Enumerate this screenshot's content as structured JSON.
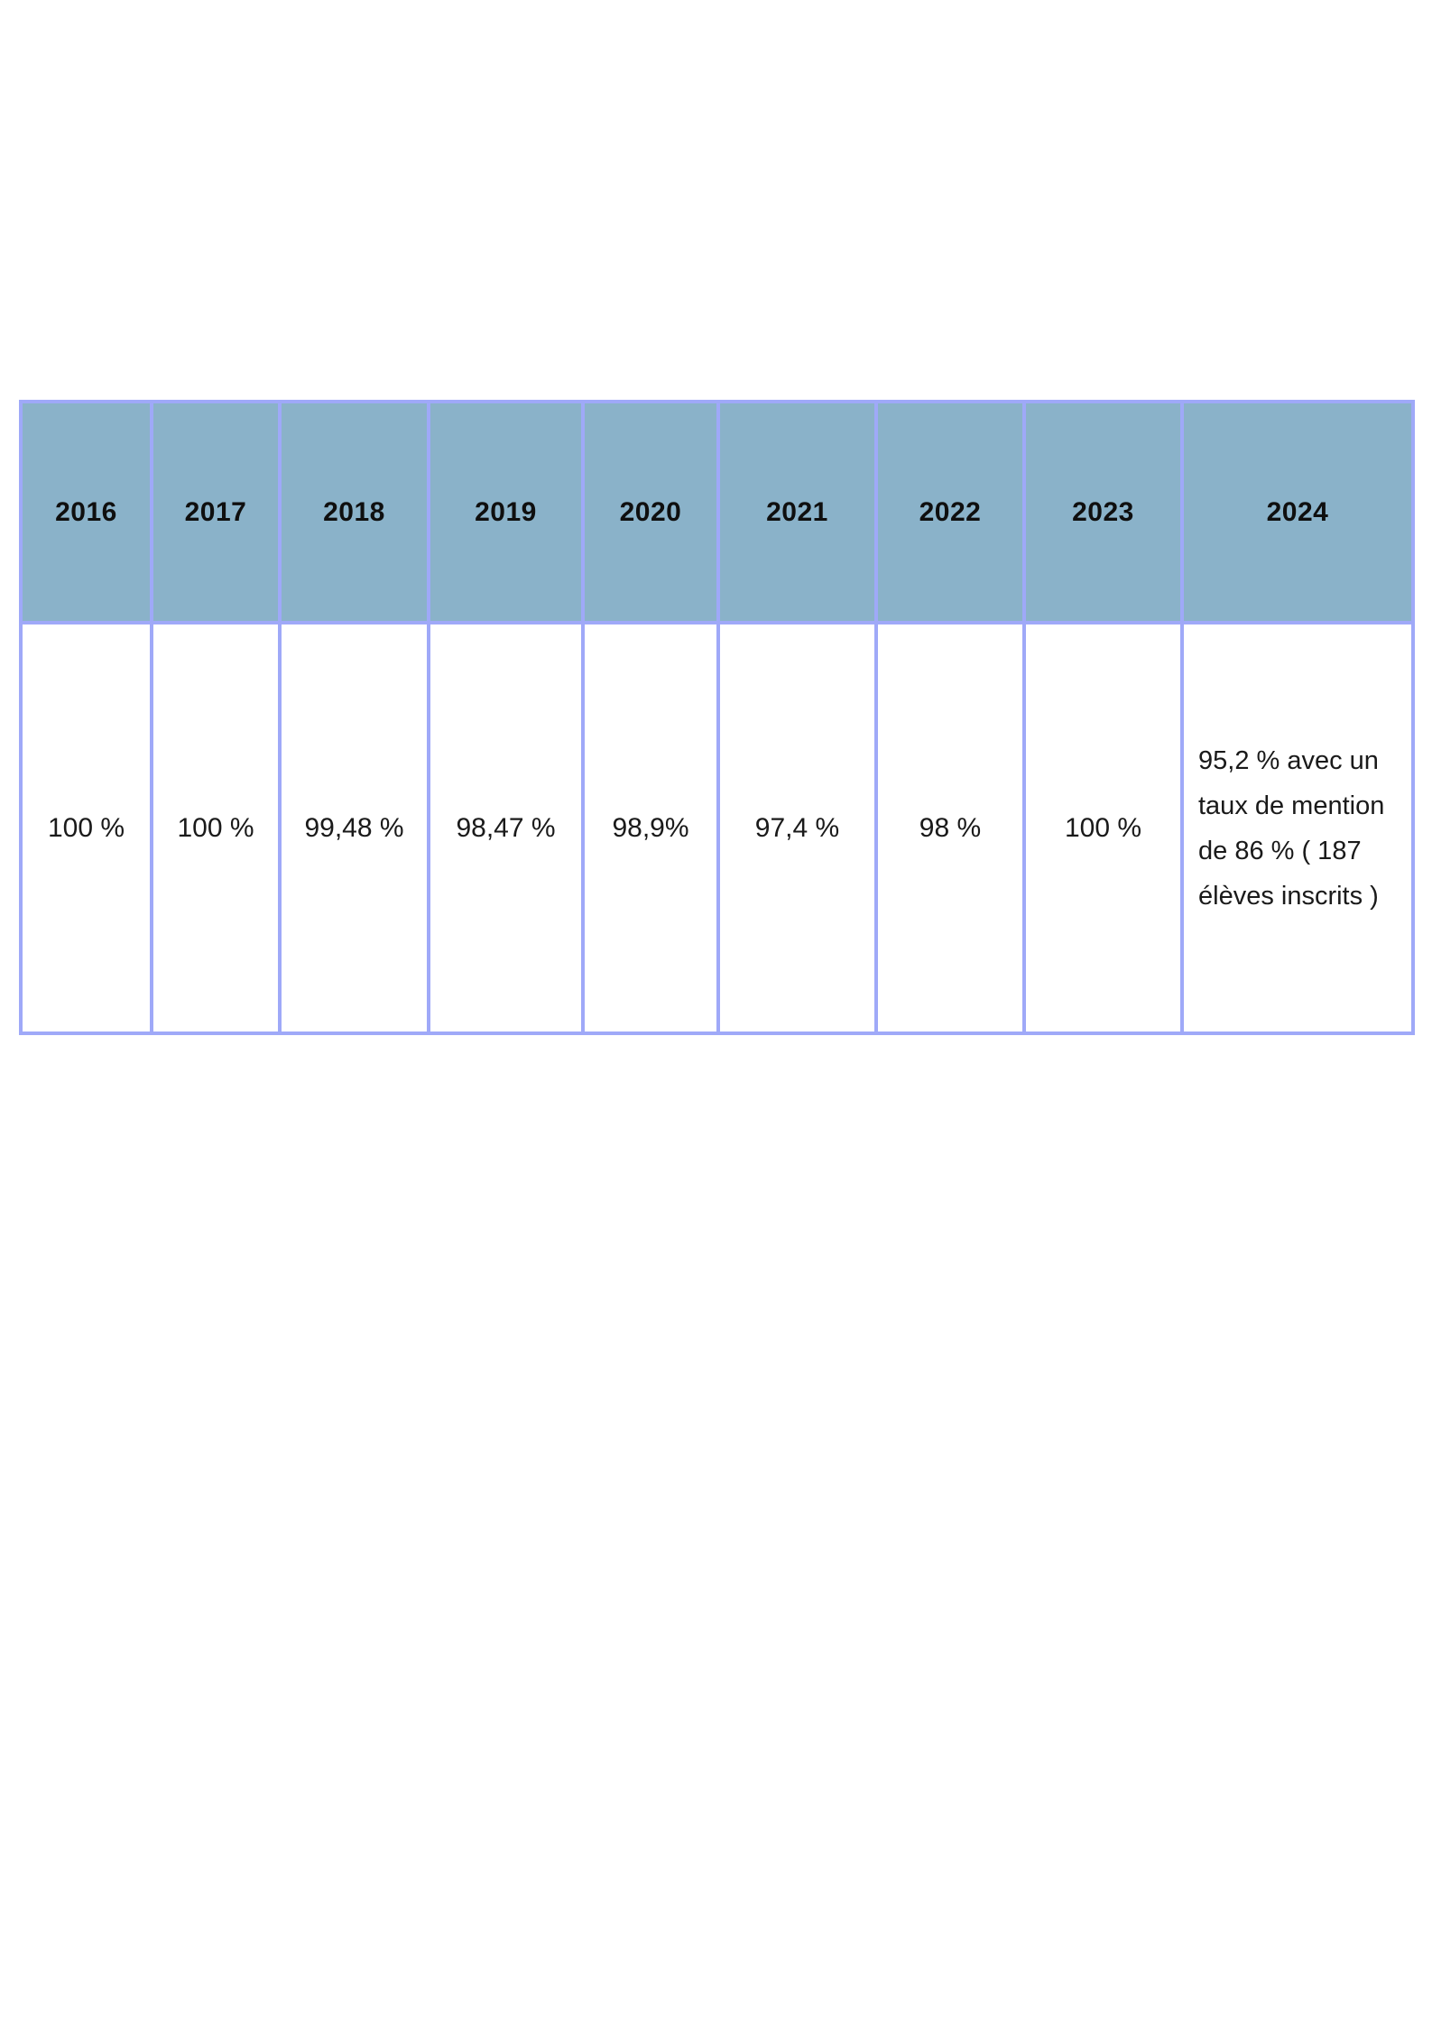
{
  "colors": {
    "page_bg": "#FFFFFF",
    "header_bg": "#8AB2C9",
    "border": "#9FA9F8",
    "header_text": "#0F0F0F",
    "body_text": "#1A1A1A"
  },
  "table": {
    "columns": [
      {
        "year": "2016",
        "value": "100 %"
      },
      {
        "year": "2017",
        "value": "100 %"
      },
      {
        "year": "2018",
        "value": "99,48 %"
      },
      {
        "year": "2019",
        "value": "98,47 %"
      },
      {
        "year": "2020",
        "value": "98,9%"
      },
      {
        "year": "2021",
        "value": "97,4 %"
      },
      {
        "year": "2022",
        "value": "98 %"
      },
      {
        "year": "2023",
        "value": "100 %"
      },
      {
        "year": "2024",
        "value": "95,2 % avec un taux de mention de 86 % ( 187 élèves inscrits )"
      }
    ]
  }
}
